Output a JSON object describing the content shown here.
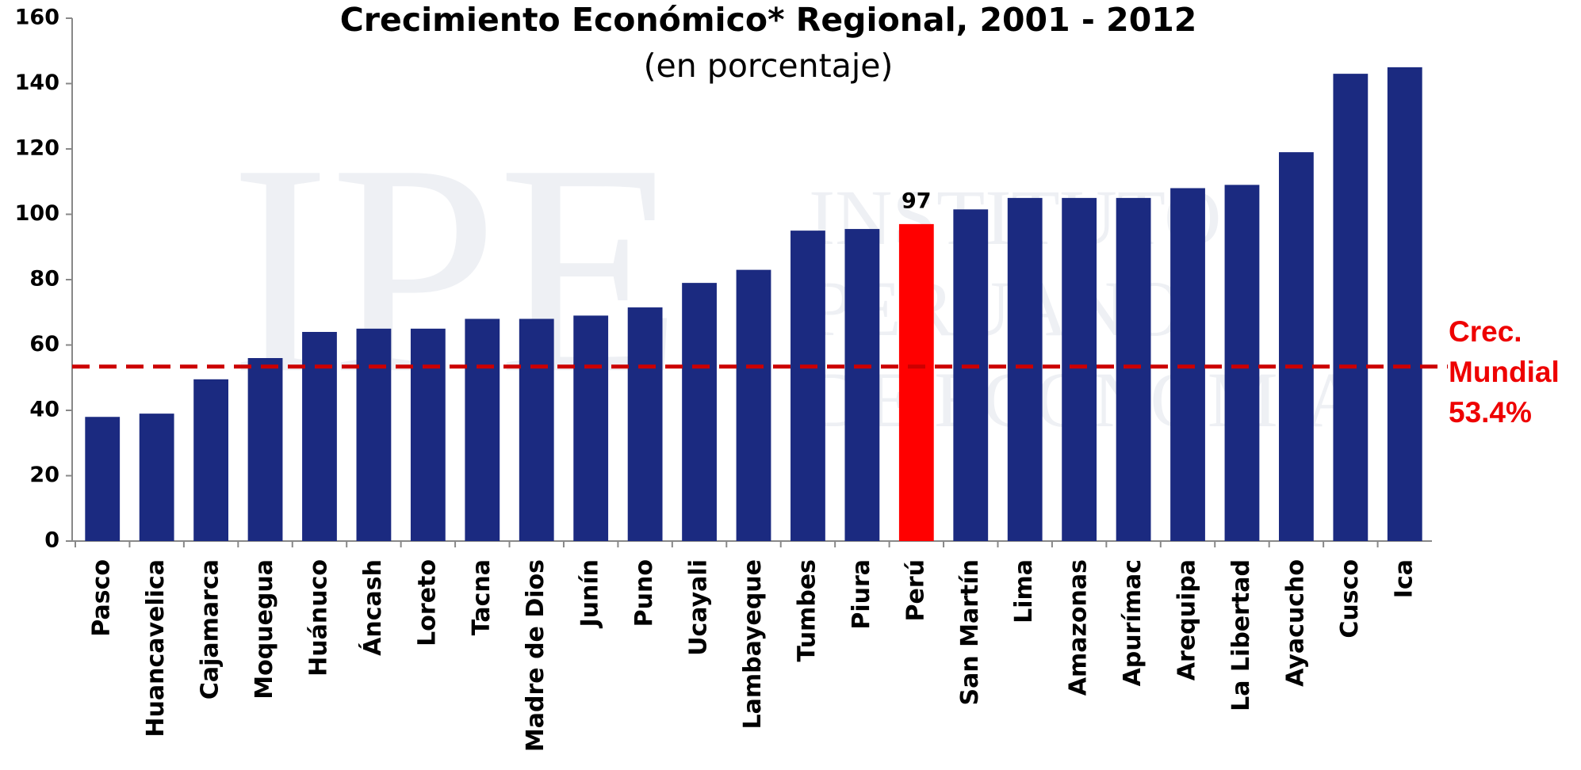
{
  "chart_data": {
    "type": "bar",
    "title": "Crecimiento Económico* Regional, 2001 - 2012",
    "subtitle": "(en porcentaje)",
    "categories": [
      "Pasco",
      "Huancavelica",
      "Cajamarca",
      "Moquegua",
      "Huánuco",
      "Áncash",
      "Loreto",
      "Tacna",
      "Madre de Dios",
      "Junín",
      "Puno",
      "Ucayali",
      "Lambayeque",
      "Tumbes",
      "Piura",
      "Perú",
      "San Martín",
      "Lima",
      "Amazonas",
      "Apurímac",
      "Arequipa",
      "La Libertad",
      "Ayacucho",
      "Cusco",
      "Ica"
    ],
    "values": [
      38,
      39,
      49.5,
      56,
      64,
      65,
      65,
      68,
      68,
      69,
      71.5,
      79,
      83,
      95,
      95.5,
      97,
      101.5,
      105,
      105,
      105,
      108,
      109,
      119,
      143,
      145
    ],
    "value_labels": [
      null,
      null,
      null,
      null,
      null,
      null,
      null,
      null,
      null,
      null,
      null,
      null,
      null,
      null,
      null,
      "97",
      null,
      null,
      null,
      null,
      null,
      null,
      null,
      null,
      null
    ],
    "colors": [
      "#1b2a80",
      "#1b2a80",
      "#1b2a80",
      "#1b2a80",
      "#1b2a80",
      "#1b2a80",
      "#1b2a80",
      "#1b2a80",
      "#1b2a80",
      "#1b2a80",
      "#1b2a80",
      "#1b2a80",
      "#1b2a80",
      "#1b2a80",
      "#1b2a80",
      "#ff0000",
      "#1b2a80",
      "#1b2a80",
      "#1b2a80",
      "#1b2a80",
      "#1b2a80",
      "#1b2a80",
      "#1b2a80",
      "#1b2a80",
      "#1b2a80"
    ],
    "ylim": [
      0,
      160
    ],
    "yticks": [
      0,
      20,
      40,
      60,
      80,
      100,
      120,
      140,
      160
    ],
    "reference_line": {
      "value": 53.4,
      "label_lines": [
        "Crec.",
        "Mundial"
      ],
      "value_label": "53.4%",
      "color": "#cc0000"
    },
    "watermark": {
      "logo": "IPE",
      "lines": [
        "INSTITUTO",
        "PERUANO",
        "DE ECONOMÍA"
      ]
    }
  }
}
